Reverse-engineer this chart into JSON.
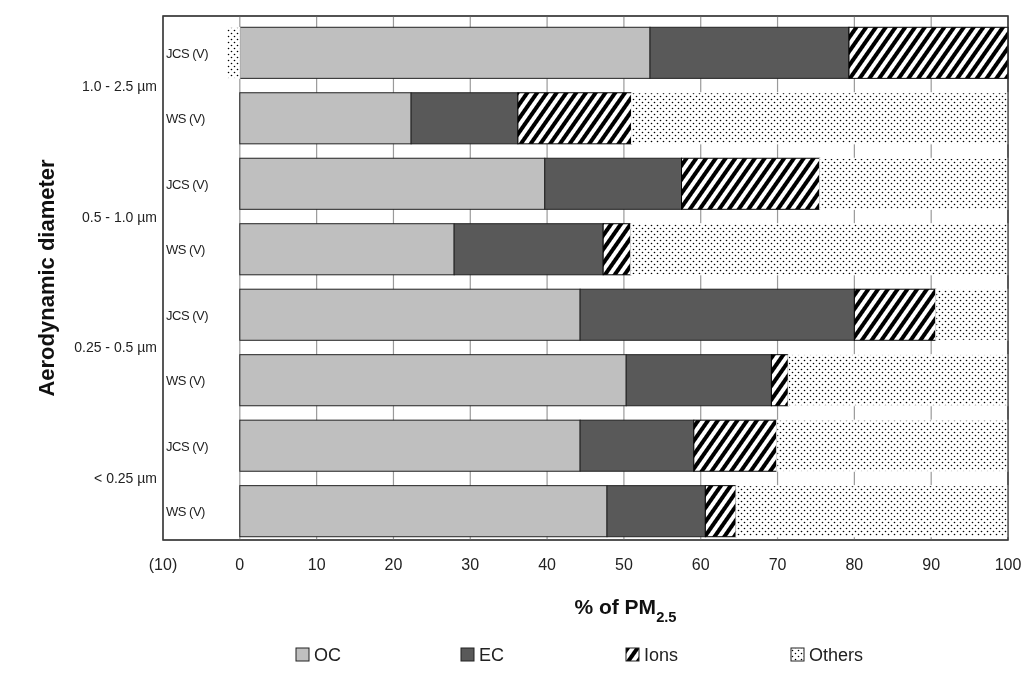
{
  "chart_data": {
    "type": "bar",
    "orientation": "horizontal",
    "stacked": true,
    "xlabel": "% of PM$_{2.5}$",
    "ylabel": "Aerodynamic diameter",
    "categories": [
      "JCS (V)",
      "WS (V)",
      "JCS (V)",
      "WS (V)",
      "JCS (V)",
      "WS (V)",
      "JCS (V)",
      "WS (V)"
    ],
    "annotations": [
      "1.0 - 2.5 µm",
      "0.5 - 1.0 µm",
      "0.25 - 0.5 µm",
      "< 0.25 µm"
    ],
    "series": [
      {
        "name": "OC",
        "color": "#bfbfbf",
        "values": [
          53.4,
          22.3,
          39.7,
          27.9,
          44.3,
          50.3,
          44.3,
          47.8
        ]
      },
      {
        "name": "EC",
        "color": "#595959",
        "values": [
          25.9,
          13.9,
          17.8,
          19.4,
          35.7,
          18.9,
          14.8,
          12.8
        ]
      },
      {
        "name": "Ions",
        "color": "#000000",
        "values": [
          20.7,
          14.8,
          18.0,
          3.6,
          10.6,
          2.2,
          10.8,
          4.0
        ]
      },
      {
        "name": "Others",
        "color": "#ffffff",
        "values": [
          -1.7,
          49.0,
          24.5,
          49.1,
          9.4,
          28.6,
          30.1,
          35.4
        ]
      }
    ],
    "xlim": [
      -10,
      100
    ],
    "xticks": [
      {
        "value": -10,
        "label": "(10)"
      },
      0,
      10,
      20,
      30,
      40,
      50,
      60,
      70,
      80,
      90,
      100
    ],
    "grid": "x",
    "legend": "bottom"
  }
}
